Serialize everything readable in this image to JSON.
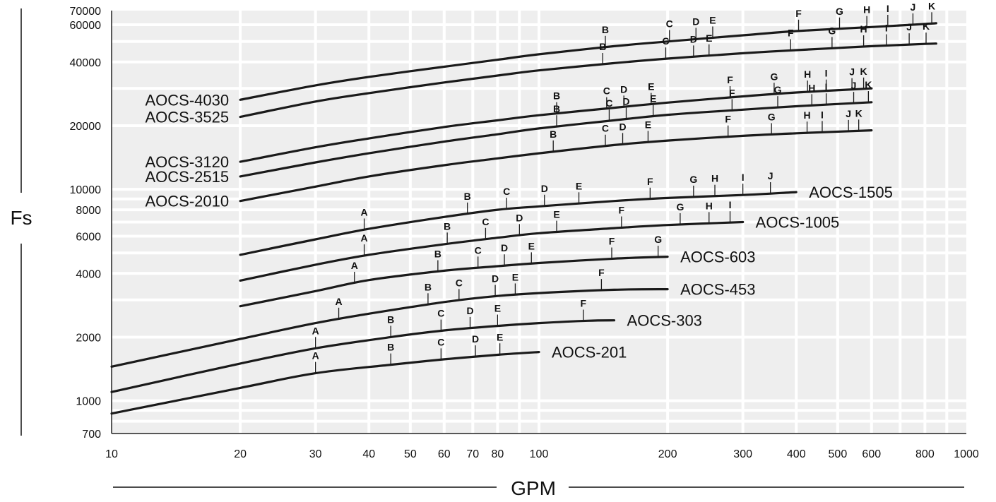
{
  "chart_data": {
    "type": "line",
    "xlabel": "GPM",
    "ylabel": "Fs",
    "x_scale": "log",
    "y_scale": "log",
    "xlim": [
      10,
      1000
    ],
    "ylim": [
      700,
      70000
    ],
    "grid": true,
    "colors": {
      "plot_background": "#eeeeee",
      "grid": "#ffffff",
      "line": "#1a1a1a",
      "text": "#111111"
    },
    "x_ticks": [
      {
        "value": 10,
        "label": "10"
      },
      {
        "value": 20,
        "label": "20"
      },
      {
        "value": 30,
        "label": "30"
      },
      {
        "value": 40,
        "label": "40"
      },
      {
        "value": 50,
        "label": "50"
      },
      {
        "value": 60,
        "label": "60"
      },
      {
        "value": 70,
        "label": "70"
      },
      {
        "value": 80,
        "label": "80"
      },
      {
        "value": 100,
        "label": "100"
      },
      {
        "value": 200,
        "label": "200"
      },
      {
        "value": 300,
        "label": "300"
      },
      {
        "value": 400,
        "label": "400"
      },
      {
        "value": 500,
        "label": "500"
      },
      {
        "value": 600,
        "label": "600"
      },
      {
        "value": 800,
        "label": "800"
      },
      {
        "value": 1000,
        "label": "1000"
      }
    ],
    "y_ticks": [
      {
        "value": 700,
        "label": "700"
      },
      {
        "value": 1000,
        "label": "1000"
      },
      {
        "value": 2000,
        "label": "2000"
      },
      {
        "value": 4000,
        "label": "4000"
      },
      {
        "value": 6000,
        "label": "6000"
      },
      {
        "value": 8000,
        "label": "8000"
      },
      {
        "value": 10000,
        "label": "10000"
      },
      {
        "value": 20000,
        "label": "20000"
      },
      {
        "value": 40000,
        "label": "40000"
      },
      {
        "value": 60000,
        "label": "60000"
      },
      {
        "value": 70000,
        "label": "70000"
      }
    ],
    "series": [
      {
        "name": "AOCS-201",
        "label_side": "right",
        "x": [
          10,
          20,
          30,
          45,
          60,
          80,
          100
        ],
        "y": [
          870,
          1150,
          1350,
          1480,
          1570,
          1650,
          1700
        ],
        "markers": [
          {
            "label": "A",
            "x": 30
          },
          {
            "label": "B",
            "x": 45
          },
          {
            "label": "C",
            "x": 59
          },
          {
            "label": "D",
            "x": 71
          },
          {
            "label": "E",
            "x": 81
          }
        ]
      },
      {
        "name": "AOCS-303",
        "label_side": "right",
        "x": [
          10,
          20,
          30,
          45,
          60,
          80,
          100,
          130,
          150
        ],
        "y": [
          1100,
          1500,
          1770,
          2000,
          2150,
          2260,
          2330,
          2390,
          2400
        ],
        "markers": [
          {
            "label": "A",
            "x": 30
          },
          {
            "label": "B",
            "x": 45
          },
          {
            "label": "C",
            "x": 59
          },
          {
            "label": "D",
            "x": 69
          },
          {
            "label": "E",
            "x": 80
          },
          {
            "label": "F",
            "x": 127
          }
        ]
      },
      {
        "name": "AOCS-453",
        "label_side": "right",
        "x": [
          10,
          20,
          30,
          40,
          60,
          80,
          100,
          150,
          200
        ],
        "y": [
          1450,
          1960,
          2330,
          2580,
          2930,
          3130,
          3230,
          3350,
          3370
        ],
        "markers": [
          {
            "label": "A",
            "x": 34
          },
          {
            "label": "B",
            "x": 55
          },
          {
            "label": "C",
            "x": 65
          },
          {
            "label": "D",
            "x": 79
          },
          {
            "label": "E",
            "x": 88
          },
          {
            "label": "F",
            "x": 140
          }
        ]
      },
      {
        "name": "AOCS-603",
        "label_side": "right",
        "x": [
          20,
          30,
          40,
          60,
          80,
          100,
          150,
          200
        ],
        "y": [
          2800,
          3300,
          3720,
          4120,
          4330,
          4480,
          4700,
          4800
        ],
        "markers": [
          {
            "label": "A",
            "x": 37
          },
          {
            "label": "B",
            "x": 58
          },
          {
            "label": "C",
            "x": 72
          },
          {
            "label": "D",
            "x": 83
          },
          {
            "label": "E",
            "x": 96
          },
          {
            "label": "F",
            "x": 148
          },
          {
            "label": "G",
            "x": 190
          }
        ]
      },
      {
        "name": "AOCS-1005",
        "label_side": "right",
        "x": [
          20,
          30,
          40,
          60,
          80,
          100,
          150,
          200,
          300
        ],
        "y": [
          3700,
          4400,
          4900,
          5500,
          5900,
          6200,
          6550,
          6780,
          7000
        ],
        "markers": [
          {
            "label": "A",
            "x": 39
          },
          {
            "label": "B",
            "x": 61
          },
          {
            "label": "C",
            "x": 75
          },
          {
            "label": "D",
            "x": 90
          },
          {
            "label": "E",
            "x": 110
          },
          {
            "label": "F",
            "x": 156
          },
          {
            "label": "G",
            "x": 214
          },
          {
            "label": "H",
            "x": 250
          },
          {
            "label": "I",
            "x": 280
          }
        ]
      },
      {
        "name": "AOCS-1505",
        "label_side": "right",
        "x": [
          20,
          30,
          40,
          60,
          80,
          100,
          150,
          200,
          300,
          400
        ],
        "y": [
          4900,
          5800,
          6500,
          7400,
          8000,
          8300,
          8800,
          9100,
          9400,
          9700
        ],
        "markers": [
          {
            "label": "A",
            "x": 39
          },
          {
            "label": "B",
            "x": 68
          },
          {
            "label": "C",
            "x": 84
          },
          {
            "label": "D",
            "x": 103
          },
          {
            "label": "E",
            "x": 124
          },
          {
            "label": "F",
            "x": 182
          },
          {
            "label": "G",
            "x": 230
          },
          {
            "label": "H",
            "x": 258
          },
          {
            "label": "I",
            "x": 300
          },
          {
            "label": "J",
            "x": 348
          }
        ]
      },
      {
        "name": "AOCS-2010",
        "label_side": "left",
        "x": [
          20,
          30,
          40,
          60,
          80,
          100,
          150,
          200,
          300,
          400,
          600
        ],
        "y": [
          8800,
          10300,
          11500,
          13000,
          14000,
          14800,
          16200,
          17000,
          17900,
          18400,
          19000
        ],
        "markers": [
          {
            "label": "B",
            "x": 108
          },
          {
            "label": "C",
            "x": 143
          },
          {
            "label": "D",
            "x": 157
          },
          {
            "label": "E",
            "x": 180
          },
          {
            "label": "F",
            "x": 277
          },
          {
            "label": "G",
            "x": 350
          },
          {
            "label": "H",
            "x": 424
          },
          {
            "label": "I",
            "x": 460
          },
          {
            "label": "J",
            "x": 530
          },
          {
            "label": "K",
            "x": 560
          }
        ]
      },
      {
        "name": "AOCS-2515",
        "label_side": "left",
        "x": [
          20,
          30,
          40,
          60,
          80,
          100,
          150,
          200,
          300,
          400,
          600
        ],
        "y": [
          11500,
          13400,
          14800,
          16800,
          18200,
          19400,
          21200,
          22500,
          23800,
          24700,
          25800
        ],
        "markers": [
          {
            "label": "B",
            "x": 110
          },
          {
            "label": "C",
            "x": 146
          },
          {
            "label": "D",
            "x": 160
          },
          {
            "label": "E",
            "x": 185
          },
          {
            "label": "F",
            "x": 283
          },
          {
            "label": "G",
            "x": 362
          },
          {
            "label": "H",
            "x": 435
          },
          {
            "label": "I",
            "x": 470
          },
          {
            "label": "J",
            "x": 545
          },
          {
            "label": "K",
            "x": 590
          }
        ]
      },
      {
        "name": "AOCS-3120",
        "label_side": "left",
        "x": [
          20,
          30,
          40,
          60,
          80,
          100,
          150,
          200,
          300,
          400,
          600
        ],
        "y": [
          13500,
          15800,
          17400,
          19700,
          21200,
          22400,
          24300,
          25700,
          27500,
          28700,
          30000
        ],
        "markers": [
          {
            "label": "B",
            "x": 110
          },
          {
            "label": "C",
            "x": 144
          },
          {
            "label": "D",
            "x": 158
          },
          {
            "label": "E",
            "x": 183
          },
          {
            "label": "F",
            "x": 280
          },
          {
            "label": "G",
            "x": 355
          },
          {
            "label": "H",
            "x": 425
          },
          {
            "label": "I",
            "x": 470
          },
          {
            "label": "J",
            "x": 540
          },
          {
            "label": "K",
            "x": 575
          }
        ]
      },
      {
        "name": "AOCS-3525",
        "label_side": "left",
        "x": [
          20,
          30,
          40,
          60,
          80,
          100,
          150,
          200,
          300,
          400,
          600,
          800,
          850
        ],
        "y": [
          22000,
          26000,
          28500,
          32000,
          34500,
          36500,
          39500,
          41500,
          44000,
          45500,
          47500,
          48700,
          48900
        ],
        "markers": [
          {
            "label": "B",
            "x": 141
          },
          {
            "label": "C",
            "x": 198
          },
          {
            "label": "D",
            "x": 230
          },
          {
            "label": "E",
            "x": 250
          },
          {
            "label": "F",
            "x": 388
          },
          {
            "label": "G",
            "x": 485
          },
          {
            "label": "H",
            "x": 575
          },
          {
            "label": "I",
            "x": 650
          },
          {
            "label": "J",
            "x": 735
          },
          {
            "label": "K",
            "x": 805
          }
        ]
      },
      {
        "name": "AOCS-4030",
        "label_side": "left",
        "x": [
          20,
          30,
          40,
          60,
          80,
          100,
          150,
          200,
          300,
          400,
          600,
          800,
          850
        ],
        "y": [
          26500,
          31000,
          34000,
          38000,
          41000,
          43500,
          47500,
          50000,
          53500,
          56000,
          58500,
          60500,
          61000
        ],
        "markers": [
          {
            "label": "B",
            "x": 143
          },
          {
            "label": "C",
            "x": 202
          },
          {
            "label": "D",
            "x": 233
          },
          {
            "label": "E",
            "x": 255
          },
          {
            "label": "F",
            "x": 405
          },
          {
            "label": "G",
            "x": 505
          },
          {
            "label": "H",
            "x": 585
          },
          {
            "label": "I",
            "x": 655
          },
          {
            "label": "J",
            "x": 750
          },
          {
            "label": "K",
            "x": 830
          }
        ]
      }
    ]
  }
}
